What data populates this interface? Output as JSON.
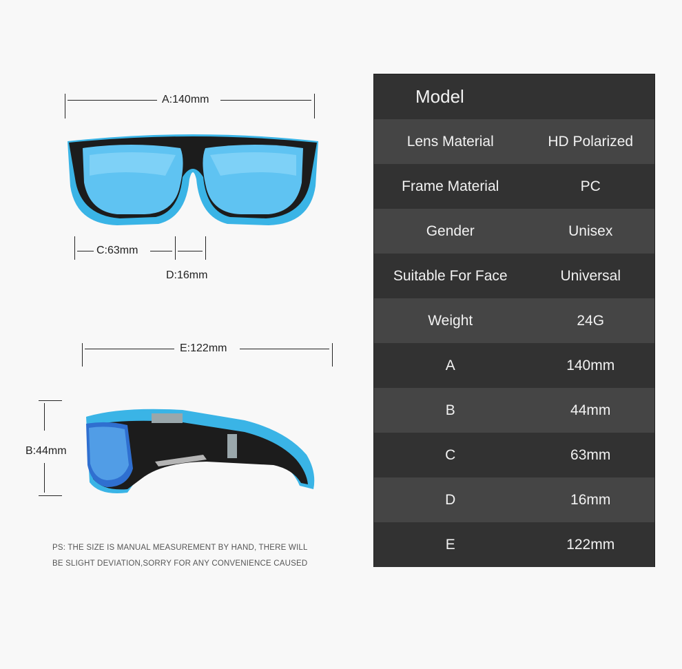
{
  "dimensions": {
    "a": "A:140mm",
    "b": "B:44mm",
    "c": "C:63mm",
    "d": "D:16mm",
    "e": "E:122mm"
  },
  "colors": {
    "frame_accent": "#3ab4e6",
    "frame_black": "#1c1c1c",
    "lens": "#4fb6ee",
    "table_dark": "#323232",
    "table_light": "#454545"
  },
  "spec_table": {
    "title": "Model",
    "rows": [
      {
        "key": "Lens Material",
        "value": "HD Polarized"
      },
      {
        "key": "Frame Material",
        "value": "PC"
      },
      {
        "key": "Gender",
        "value": "Unisex"
      },
      {
        "key": "Suitable For Face",
        "value": "Universal"
      },
      {
        "key": "Weight",
        "value": "24G"
      },
      {
        "key": "A",
        "value": "140mm"
      },
      {
        "key": "B",
        "value": "44mm"
      },
      {
        "key": "C",
        "value": "63mm"
      },
      {
        "key": "D",
        "value": "16mm"
      },
      {
        "key": "E",
        "value": "122mm"
      }
    ]
  },
  "note": {
    "line1": "PS: THE SIZE IS MANUAL MEASUREMENT BY HAND, THERE WILL",
    "line2": "BE SLIGHT DEVIATION,SORRY FOR ANY CONVENIENCE CAUSED"
  }
}
